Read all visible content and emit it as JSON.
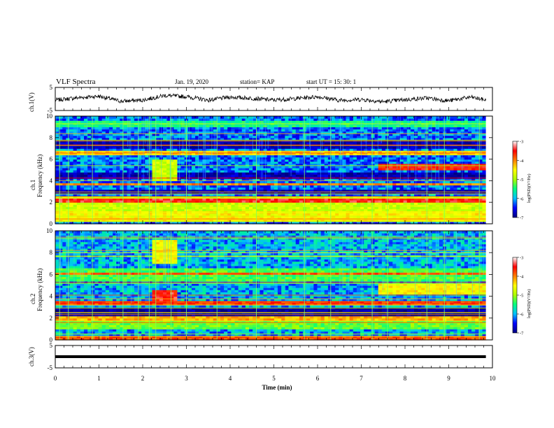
{
  "header": {
    "title": "VLF Spectra",
    "date": "Jan. 19, 2020",
    "station": "station= KAP",
    "start": "start  UT =   15: 30: 1"
  },
  "x_axis": {
    "label": "Time (min)",
    "min": 0,
    "max": 10,
    "ticks": [
      "0",
      "1",
      "2",
      "3",
      "4",
      "5",
      "6",
      "7",
      "8",
      "9",
      "10"
    ]
  },
  "panels": {
    "ch1_wave": {
      "ylabel": "ch.1(V)",
      "ylim": [
        -5,
        5
      ],
      "ticks": [
        "5",
        "-5"
      ]
    },
    "ch1_spec": {
      "ylabel1": "ch.1",
      "ylabel2": "Frequency (kHz)",
      "ylim": [
        0,
        10
      ],
      "ticks": [
        "0",
        "2",
        "4",
        "6",
        "8",
        "10"
      ]
    },
    "ch2_spec": {
      "ylabel1": "ch.2",
      "ylabel2": "Frequency (kHz)",
      "ylim": [
        0,
        10
      ],
      "ticks": [
        "0",
        "2",
        "4",
        "6",
        "8",
        "10"
      ]
    },
    "ch3_wave": {
      "ylabel": "ch.3(V)",
      "ylim": [
        -5,
        5
      ],
      "ticks": [
        "5",
        "-5"
      ]
    }
  },
  "colorbar": {
    "title": "log(PSD)(V²/Hz)",
    "range": [
      -7,
      -3
    ],
    "ticks": [
      "-3",
      "-4",
      "-5",
      "-6",
      "-7"
    ],
    "colors": [
      "#000080",
      "#0000ff",
      "#00bfff",
      "#00ff80",
      "#aaff00",
      "#ffff00",
      "#ff8000",
      "#ff0000",
      "#ffffff"
    ]
  },
  "chart_data": [
    {
      "type": "line",
      "name": "ch.1 waveform",
      "xlabel": "Time (min)",
      "ylabel": "ch.1(V)",
      "xlim": [
        0,
        10
      ],
      "ylim": [
        -5,
        5
      ],
      "x": [
        0,
        0.5,
        1,
        1.5,
        2,
        2.5,
        3,
        3.5,
        4,
        4.5,
        5,
        5.5,
        6,
        6.5,
        7,
        7.5,
        8,
        8.5,
        9,
        9.5,
        9.85
      ],
      "y": [
        -0.5,
        0.5,
        1.2,
        -1.0,
        -0.5,
        1.5,
        1.0,
        -0.5,
        0.8,
        0.3,
        -0.5,
        0.2,
        1.0,
        -0.6,
        -0.2,
        -1.2,
        -0.3,
        0.4,
        -0.8,
        0.8,
        -0.5
      ]
    },
    {
      "type": "heatmap",
      "name": "ch.1 spectrogram",
      "xlabel": "Time (min)",
      "ylabel": "Frequency (kHz)",
      "xlim": [
        0,
        10
      ],
      "ylim": [
        0,
        10
      ],
      "background_log_psd": -6.2,
      "bands": [
        {
          "f": [
            0.2,
            1.2
          ],
          "t": [
            0,
            9.85
          ],
          "log_psd": -4.5
        },
        {
          "f": [
            1.3,
            2.5
          ],
          "t": [
            0,
            9.85
          ],
          "log_psd": -4.8
        },
        {
          "f": [
            2.1,
            2.4
          ],
          "t": [
            0,
            9.85
          ],
          "log_psd": -3.5
        },
        {
          "f": [
            2.8,
            3.2
          ],
          "t": [
            0,
            9.85
          ],
          "log_psd": -6.8
        },
        {
          "f": [
            3.6,
            3.8
          ],
          "t": [
            0,
            9.85
          ],
          "log_psd": -4.0
        },
        {
          "f": [
            4.3,
            4.8
          ],
          "t": [
            0,
            9.85
          ],
          "log_psd": -6.8
        },
        {
          "f": [
            5.0,
            5.5
          ],
          "t": [
            2.2,
            2.8
          ],
          "log_psd": -3.4
        },
        {
          "f": [
            5.0,
            5.5
          ],
          "t": [
            7.4,
            9.85
          ],
          "log_psd": -3.6
        },
        {
          "f": [
            4.0,
            6.0
          ],
          "t": [
            2.2,
            2.8
          ],
          "log_psd": -4.8
        },
        {
          "f": [
            6.5,
            6.8
          ],
          "t": [
            0,
            9.85
          ],
          "log_psd": -4.2
        },
        {
          "f": [
            7.0,
            7.8
          ],
          "t": [
            0,
            9.85
          ],
          "log_psd": -6.8
        },
        {
          "f": [
            9.0,
            9.5
          ],
          "t": [
            0,
            9.85
          ],
          "log_psd": -5.5
        }
      ],
      "events_time_min": [
        0.1,
        0.3,
        0.85,
        1.55,
        1.9,
        2.15,
        2.3,
        2.65,
        3.0,
        3.7,
        4.6,
        5.7,
        6.3,
        7.25,
        7.6,
        8.5,
        8.9,
        9.7
      ]
    },
    {
      "type": "heatmap",
      "name": "ch.2 spectrogram",
      "xlabel": "Time (min)",
      "ylabel": "Frequency (kHz)",
      "xlim": [
        0,
        10
      ],
      "ylim": [
        0,
        10
      ],
      "background_log_psd": -6.0,
      "bands": [
        {
          "f": [
            0.1,
            0.4
          ],
          "t": [
            0,
            9.85
          ],
          "log_psd": -3.8
        },
        {
          "f": [
            1.0,
            1.8
          ],
          "t": [
            0,
            9.85
          ],
          "log_psd": -5.2
        },
        {
          "f": [
            1.9,
            2.1
          ],
          "t": [
            0,
            9.85
          ],
          "log_psd": -4.2
        },
        {
          "f": [
            2.2,
            3.0
          ],
          "t": [
            0,
            9.85
          ],
          "log_psd": -6.9
        },
        {
          "f": [
            3.2,
            3.5
          ],
          "t": [
            0,
            9.85
          ],
          "log_psd": -3.7
        },
        {
          "f": [
            3.5,
            4.5
          ],
          "t": [
            2.2,
            2.8
          ],
          "log_psd": -3.5
        },
        {
          "f": [
            4.2,
            5.2
          ],
          "t": [
            7.4,
            9.85
          ],
          "log_psd": -4.5
        },
        {
          "f": [
            5.5,
            6.5
          ],
          "t": [
            0,
            9.85
          ],
          "log_psd": -5.3
        },
        {
          "f": [
            7.0,
            9.2
          ],
          "t": [
            2.2,
            2.8
          ],
          "log_psd": -4.5
        },
        {
          "f": [
            6.0,
            6.3
          ],
          "t": [
            0,
            9.85
          ],
          "log_psd": -3.9
        }
      ],
      "events_time_min": [
        0.1,
        0.3,
        0.85,
        1.55,
        1.9,
        2.15,
        2.3,
        2.65,
        3.0,
        3.7,
        4.6,
        5.7,
        6.3,
        7.25,
        7.6,
        8.5,
        8.9,
        9.7
      ]
    },
    {
      "type": "line",
      "name": "ch.3 waveform",
      "xlabel": "Time (min)",
      "ylabel": "ch.3(V)",
      "xlim": [
        0,
        10
      ],
      "ylim": [
        -5,
        5
      ],
      "x": [
        0,
        9.85
      ],
      "y": [
        0,
        0
      ]
    }
  ]
}
